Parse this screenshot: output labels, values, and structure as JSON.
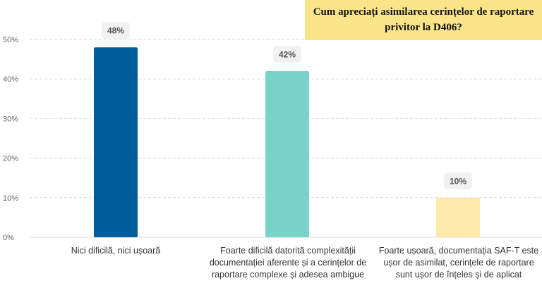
{
  "chart_data": {
    "type": "bar",
    "title": "Cum apreciați asimilarea cerințelor de raportare privitor la D406?",
    "categories": [
      "Nici dificilă, nici ușoară",
      "Foarte dificilă datorită complexității documentației aferente și a cerințelor de raportare complexe și adesea ambigue",
      "Foarte ușoară, documentația SAF-T este ușor de asimilat, cerințele de raportare sunt ușor de înțeles și de aplicat"
    ],
    "values": [
      48,
      42,
      10
    ],
    "value_labels": [
      "48%",
      "42%",
      "10%"
    ],
    "colors": [
      "#005c9a",
      "#7ad3c8",
      "#fde9a9"
    ],
    "ylim": [
      0,
      50
    ],
    "yticks": [
      0,
      10,
      20,
      30,
      40,
      50
    ],
    "ytick_labels": [
      "0%",
      "10%",
      "20%",
      "30%",
      "40%",
      "50%"
    ],
    "xlabel": "",
    "ylabel": "",
    "grid": true,
    "legend": "none"
  }
}
